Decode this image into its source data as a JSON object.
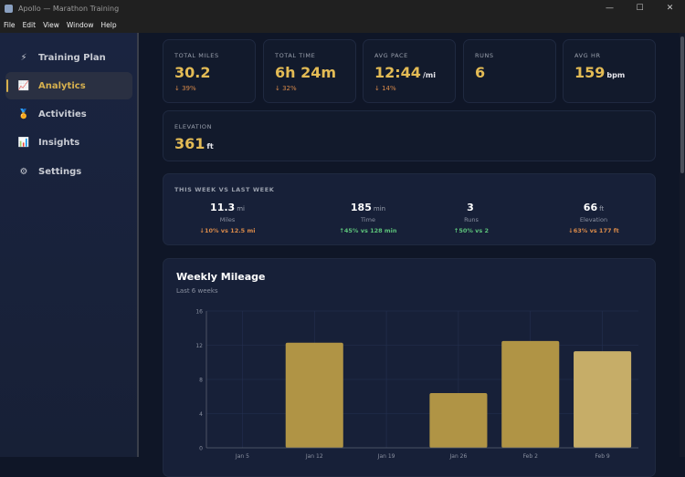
{
  "window": {
    "title": "Apollo — Marathon Training",
    "controls": [
      "—",
      "☐",
      "✕"
    ]
  },
  "menu": [
    "File",
    "Edit",
    "View",
    "Window",
    "Help"
  ],
  "sidebar": [
    {
      "label": "Training Plan",
      "icon": "lightning-icon",
      "glyph": "⚡",
      "active": false
    },
    {
      "label": "Analytics",
      "icon": "chart-icon",
      "glyph": "📈",
      "active": true
    },
    {
      "label": "Activities",
      "icon": "medal-icon",
      "glyph": "🏅",
      "active": false
    },
    {
      "label": "Insights",
      "icon": "bar-chart-icon",
      "glyph": "📊",
      "active": false
    },
    {
      "label": "Settings",
      "icon": "gear-icon",
      "glyph": "⚙",
      "active": false
    }
  ],
  "stats": [
    {
      "label": "TOTAL MILES",
      "value": "30.2",
      "unit": "",
      "change": "↓ 39%"
    },
    {
      "label": "TOTAL TIME",
      "value": "6h 24m",
      "unit": "",
      "change": "↓ 32%"
    },
    {
      "label": "AVG PACE",
      "value": "12:44",
      "unit": "/mi",
      "change": "↓ 14%"
    },
    {
      "label": "RUNS",
      "value": "6",
      "unit": "",
      "change": ""
    },
    {
      "label": "AVG HR",
      "value": "159",
      "unit": "bpm",
      "change": ""
    }
  ],
  "elevation": {
    "label": "ELEVATION",
    "value": "361",
    "unit": "ft"
  },
  "comparison": {
    "title": "THIS WEEK VS LAST WEEK",
    "items": [
      {
        "value": "11.3",
        "unit": "mi",
        "label": "Miles",
        "delta": "↓10% vs 12.5 mi",
        "dir": "down"
      },
      {
        "value": "185",
        "unit": "min",
        "label": "Time",
        "delta": "↑45% vs 128 min",
        "dir": "up"
      },
      {
        "value": "3",
        "unit": "",
        "label": "Runs",
        "delta": "↑50% vs 2",
        "dir": "up"
      },
      {
        "value": "66",
        "unit": "ft",
        "label": "Elevation",
        "delta": "↓63% vs 177 ft",
        "dir": "down"
      }
    ]
  },
  "chart_data": {
    "type": "bar",
    "title": "Weekly Mileage",
    "subtitle": "Last 6 weeks",
    "categories": [
      "Jan 5",
      "Jan 12",
      "Jan 19",
      "Jan 26",
      "Feb 2",
      "Feb 9"
    ],
    "values": [
      0,
      12.3,
      0,
      6.4,
      12.5,
      11.3
    ],
    "ylim": [
      0,
      16
    ],
    "yticks": [
      0,
      4,
      8,
      12,
      16
    ],
    "grid": true,
    "colors": {
      "bar": "#b09445",
      "current": "#c6ad68"
    }
  }
}
